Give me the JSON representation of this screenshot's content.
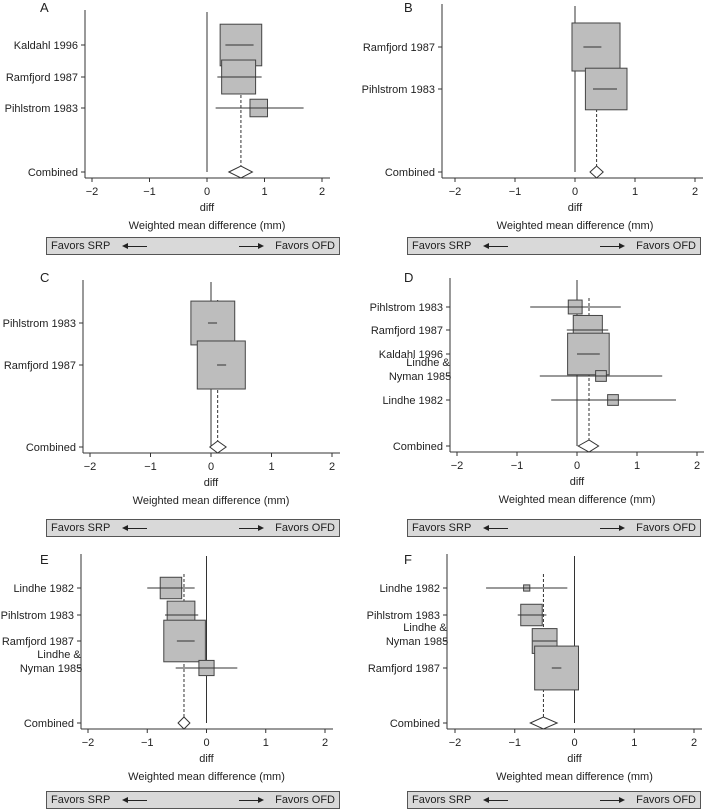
{
  "chart_data": [
    {
      "type": "forest",
      "panel": "A",
      "xlabel": "diff",
      "subtitle": "Weighted mean difference (mm)",
      "xlim": [
        -2,
        2
      ],
      "xticks": [
        "−2",
        "−1",
        "0",
        "1",
        "2"
      ],
      "xtick_values": [
        -2,
        -1,
        0,
        1,
        2
      ],
      "studies": [
        {
          "label": "Kaldahl 1996",
          "estimate": 0.59,
          "ci": [
            0.32,
            0.81
          ],
          "weight": 0.45
        },
        {
          "label": "Ramfjord 1987",
          "estimate": 0.55,
          "ci": [
            0.18,
            0.95
          ],
          "weight": 0.3
        },
        {
          "label": "Pihlstrom 1983",
          "estimate": 0.9,
          "ci": [
            0.15,
            1.68
          ],
          "weight": 0.08
        }
      ],
      "combined": {
        "label": "Combined",
        "estimate": 0.59,
        "ci": [
          0.38,
          0.79
        ]
      },
      "favors": {
        "left": "Favors SRP",
        "right": "Favors OFD"
      }
    },
    {
      "type": "forest",
      "panel": "B",
      "xlabel": "diff",
      "subtitle": "Weighted mean difference (mm)",
      "xlim": [
        -2,
        2
      ],
      "xticks": [
        "−2",
        "−1",
        "0",
        "1",
        "2"
      ],
      "xtick_values": [
        -2,
        -1,
        0,
        1,
        2
      ],
      "studies": [
        {
          "label": "Ramfjord 1987",
          "estimate": 0.35,
          "ci": [
            0.14,
            0.44
          ],
          "weight": 0.6
        },
        {
          "label": "Pihlstrom 1983",
          "estimate": 0.52,
          "ci": [
            0.3,
            0.7
          ],
          "weight": 0.45
        }
      ],
      "combined": {
        "label": "Combined",
        "estimate": 0.36,
        "ci": [
          0.25,
          0.47
        ]
      },
      "favors": {
        "left": "Favors SRP",
        "right": "Favors OFD"
      }
    },
    {
      "type": "forest",
      "panel": "C",
      "xlabel": "diff",
      "subtitle": "Weighted mean difference (mm)",
      "xlim": [
        -2,
        2
      ],
      "xticks": [
        "−2",
        "−1",
        "0",
        "1",
        "2"
      ],
      "xtick_values": [
        -2,
        -1,
        0,
        1,
        2
      ],
      "studies": [
        {
          "label": "Pihlstrom 1983",
          "estimate": 0.03,
          "ci": [
            -0.05,
            0.1
          ],
          "weight": 0.5
        },
        {
          "label": "Ramfjord 1987",
          "estimate": 0.17,
          "ci": [
            0.1,
            0.25
          ],
          "weight": 0.6
        }
      ],
      "combined": {
        "label": "Combined",
        "estimate": 0.11,
        "ci": [
          -0.02,
          0.25
        ]
      },
      "favors": {
        "left": "Favors SRP",
        "right": "Favors OFD"
      }
    },
    {
      "type": "forest",
      "panel": "D",
      "xlabel": "diff",
      "subtitle": "Weighted mean difference (mm)",
      "xlim": [
        -2,
        2
      ],
      "xticks": [
        "−2",
        "−1",
        "0",
        "1",
        "2"
      ],
      "xtick_values": [
        -2,
        -1,
        0,
        1,
        2
      ],
      "studies": [
        {
          "label": "Pihlstrom 1983",
          "estimate": -0.03,
          "ci": [
            -0.78,
            0.73
          ],
          "weight": 0.05
        },
        {
          "label": "Ramfjord 1987",
          "estimate": 0.18,
          "ci": [
            -0.17,
            0.52
          ],
          "weight": 0.22
        },
        {
          "label": "Kaldahl 1996",
          "estimate": 0.19,
          "ci": [
            0.0,
            0.38
          ],
          "weight": 0.45
        },
        {
          "label": "Lindhe & Nyman 1985",
          "estimate": 0.4,
          "ci": [
            -0.62,
            1.42
          ],
          "weight": 0.03
        },
        {
          "label": "Lindhe 1982",
          "estimate": 0.6,
          "ci": [
            -0.43,
            1.65
          ],
          "weight": 0.03
        }
      ],
      "combined": {
        "label": "Combined",
        "estimate": 0.2,
        "ci": [
          0.02,
          0.36
        ]
      },
      "favors": {
        "left": "Favors SRP",
        "right": "Favors OFD"
      }
    },
    {
      "type": "forest",
      "panel": "E",
      "xlabel": "diff",
      "subtitle": "Weighted mean difference (mm)",
      "xlim": [
        -2,
        2
      ],
      "xticks": [
        "−2",
        "−1",
        "0",
        "1",
        "2"
      ],
      "xtick_values": [
        -2,
        -1,
        0,
        1,
        2
      ],
      "studies": [
        {
          "label": "Lindhe 1982",
          "estimate": -0.6,
          "ci": [
            -1.0,
            -0.2
          ],
          "weight": 0.12
        },
        {
          "label": "Pihlstrom 1983",
          "estimate": -0.43,
          "ci": [
            -0.7,
            -0.14
          ],
          "weight": 0.2
        },
        {
          "label": "Ramfjord 1987",
          "estimate": -0.37,
          "ci": [
            -0.5,
            -0.2
          ],
          "weight": 0.45
        },
        {
          "label": "Lindhe & Nyman 1985",
          "estimate": 0.0,
          "ci": [
            -0.52,
            0.52
          ],
          "weight": 0.06
        }
      ],
      "combined": {
        "label": "Combined",
        "estimate": -0.38,
        "ci": [
          -0.48,
          -0.28
        ]
      },
      "favors": {
        "left": "Favors SRP",
        "right": "Favors OFD"
      }
    },
    {
      "type": "forest",
      "panel": "F",
      "xlabel": "diff",
      "subtitle": "Weighted mean difference (mm)",
      "xlim": [
        -2,
        2
      ],
      "xticks": [
        "−2",
        "−1",
        "0",
        "1",
        "2"
      ],
      "xtick_values": [
        -2,
        -1,
        0,
        1,
        2
      ],
      "studies": [
        {
          "label": "Lindhe 1982",
          "estimate": -0.8,
          "ci": [
            -1.48,
            -0.12
          ],
          "weight": 0.01
        },
        {
          "label": "Pihlstrom 1983",
          "estimate": -0.72,
          "ci": [
            -0.95,
            -0.47
          ],
          "weight": 0.12
        },
        {
          "label": "Lindhe & Nyman 1985",
          "estimate": -0.5,
          "ci": [
            -0.7,
            -0.3
          ],
          "weight": 0.16
        },
        {
          "label": "Ramfjord 1987",
          "estimate": -0.3,
          "ci": [
            -0.38,
            -0.22
          ],
          "weight": 0.5
        }
      ],
      "combined": {
        "label": "Combined",
        "estimate": -0.52,
        "ci": [
          -0.74,
          -0.29
        ]
      },
      "favors": {
        "left": "Favors SRP",
        "right": "Favors OFD"
      }
    }
  ]
}
